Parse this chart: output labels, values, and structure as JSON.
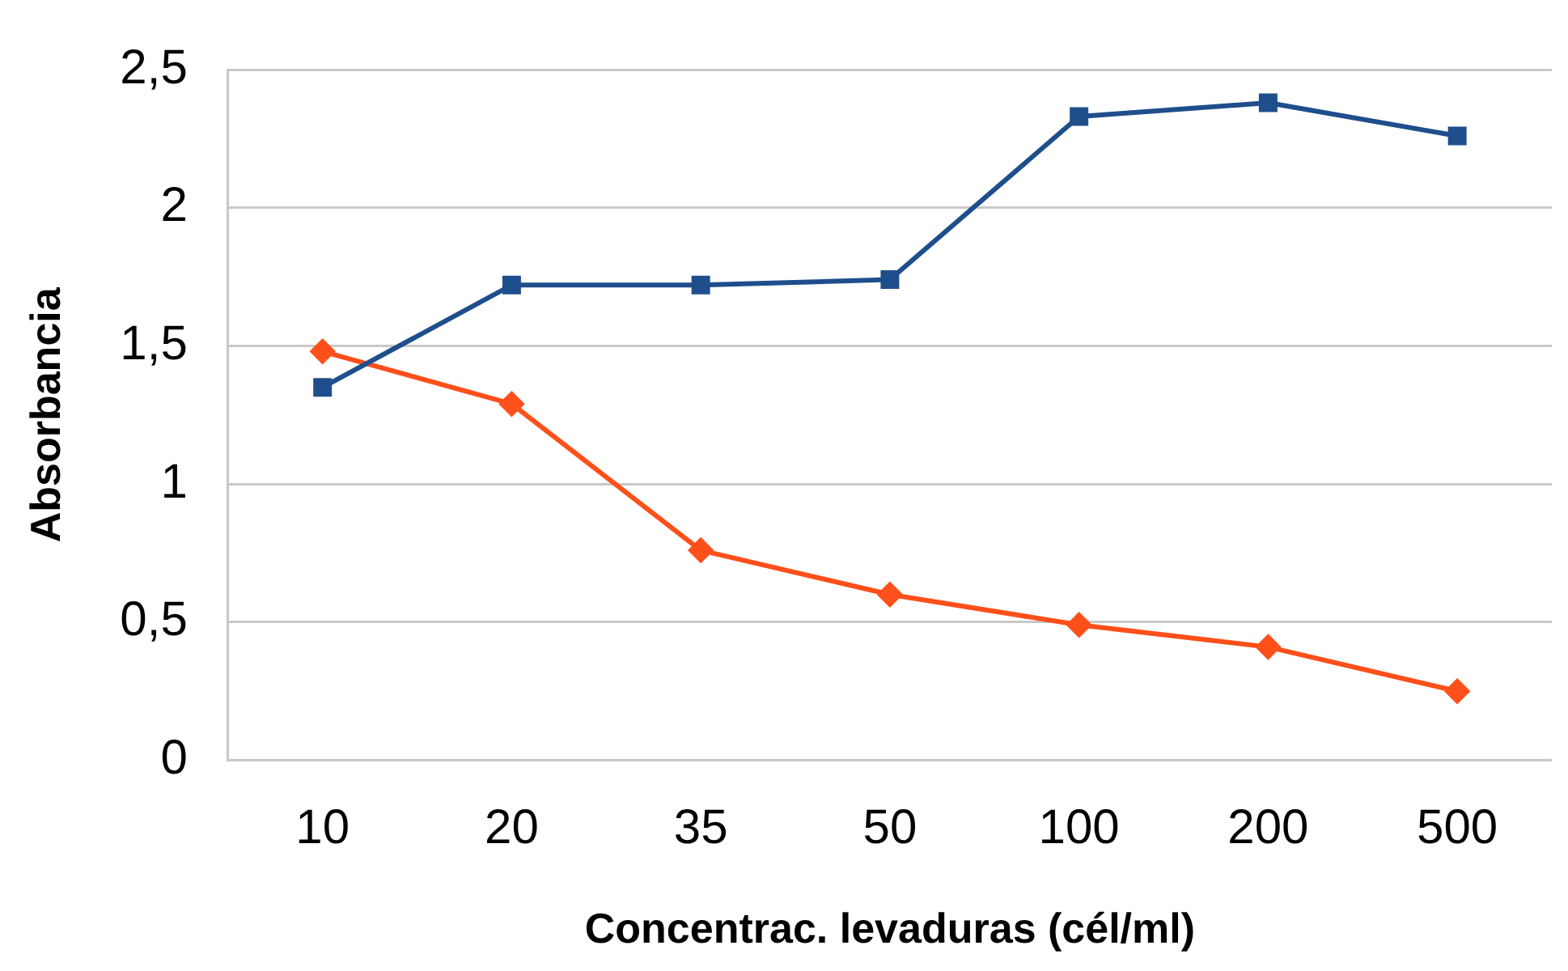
{
  "chart_data": {
    "type": "line",
    "xlabel": "Concentrac. levaduras (cél/ml)",
    "ylabel": "Absorbancia",
    "categories": [
      "10",
      "20",
      "35",
      "50",
      "100",
      "200",
      "500"
    ],
    "series": [
      {
        "color": "#1f4e8c",
        "marker": "square",
        "values": [
          1.35,
          1.72,
          1.72,
          1.74,
          2.33,
          2.38,
          2.26
        ]
      },
      {
        "color": "#ff4f1a",
        "marker": "diamond",
        "values": [
          1.48,
          1.29,
          0.76,
          0.6,
          0.49,
          0.41,
          0.25
        ]
      }
    ],
    "ylim": [
      0,
      2.5
    ],
    "yticks": [
      0,
      {
        "value": 0.5,
        "label": "0,5"
      },
      1,
      {
        "value": 1.5,
        "label": "1,5"
      },
      2,
      {
        "value": 2.5,
        "label": "2,5"
      }
    ],
    "grid": "y",
    "legend": false,
    "line_style": "solid"
  }
}
